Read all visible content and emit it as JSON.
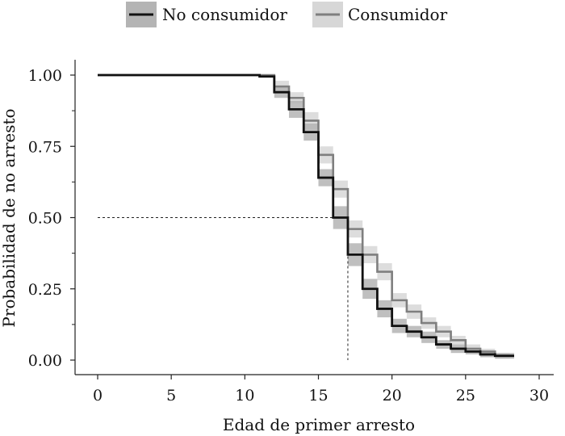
{
  "chart_data": {
    "type": "line",
    "step": true,
    "xlabel": "Edad de primer arresto",
    "ylabel": "Probabilidad de no arresto",
    "xlim": [
      0,
      30
    ],
    "ylim": [
      0,
      1
    ],
    "x_ticks": [
      0,
      5,
      10,
      15,
      20,
      25,
      30
    ],
    "x_tick_labels": [
      "0",
      "5",
      "10",
      "15",
      "20",
      "25",
      "30"
    ],
    "y_ticks": [
      0,
      0.25,
      0.5,
      0.75,
      1
    ],
    "y_tick_labels": [
      "0.00",
      "0.25",
      "0.50",
      "0.75",
      "1.00"
    ],
    "grid": false,
    "legend_position": "top",
    "median_line": {
      "y": 0.5,
      "x": 17
    },
    "series": [
      {
        "name": "Consumidor",
        "color": "#7f7f7f",
        "band_color": "#d7d7d7",
        "points": [
          [
            0,
            1
          ],
          [
            12,
            0.96
          ],
          [
            13,
            0.92
          ],
          [
            14,
            0.84
          ],
          [
            15,
            0.72
          ],
          [
            16,
            0.6
          ],
          [
            17,
            0.46
          ],
          [
            18,
            0.37
          ],
          [
            19,
            0.31
          ],
          [
            20,
            0.21
          ],
          [
            21,
            0.17
          ],
          [
            22,
            0.13
          ],
          [
            23,
            0.1
          ],
          [
            24,
            0.07
          ],
          [
            25,
            0.04
          ],
          [
            26,
            0.03
          ],
          [
            27,
            0.015
          ],
          [
            28,
            0.015
          ]
        ],
        "ci": [
          [
            0,
            0
          ],
          [
            0.02,
            0.02
          ],
          [
            0.02,
            0.02
          ],
          [
            0.03,
            0.03
          ],
          [
            0.03,
            0.03
          ],
          [
            0.03,
            0.03
          ],
          [
            0.03,
            0.03
          ],
          [
            0.03,
            0.03
          ],
          [
            0.03,
            0.03
          ],
          [
            0.025,
            0.025
          ],
          [
            0.025,
            0.025
          ],
          [
            0.02,
            0.02
          ],
          [
            0.02,
            0.02
          ],
          [
            0.015,
            0.015
          ],
          [
            0.015,
            0.015
          ],
          [
            0.01,
            0.01
          ],
          [
            0.01,
            0.01
          ],
          [
            0.01,
            0.01
          ]
        ]
      },
      {
        "name": "No consumidor",
        "color": "#111111",
        "band_color": "#b4b4b4",
        "points": [
          [
            0,
            1
          ],
          [
            11,
            0.995
          ],
          [
            12,
            0.94
          ],
          [
            13,
            0.88
          ],
          [
            14,
            0.8
          ],
          [
            15,
            0.64
          ],
          [
            16,
            0.5
          ],
          [
            17,
            0.37
          ],
          [
            18,
            0.25
          ],
          [
            19,
            0.18
          ],
          [
            20,
            0.12
          ],
          [
            21,
            0.1
          ],
          [
            22,
            0.08
          ],
          [
            23,
            0.055
          ],
          [
            24,
            0.04
          ],
          [
            25,
            0.03
          ],
          [
            26,
            0.02
          ],
          [
            27,
            0.015
          ],
          [
            28.3,
            0.015
          ]
        ],
        "ci": [
          [
            0,
            0
          ],
          [
            0.003,
            0.003
          ],
          [
            0.02,
            0.02
          ],
          [
            0.03,
            0.03
          ],
          [
            0.03,
            0.03
          ],
          [
            0.03,
            0.03
          ],
          [
            0.04,
            0.04
          ],
          [
            0.04,
            0.04
          ],
          [
            0.035,
            0.035
          ],
          [
            0.03,
            0.03
          ],
          [
            0.025,
            0.025
          ],
          [
            0.02,
            0.02
          ],
          [
            0.02,
            0.02
          ],
          [
            0.015,
            0.015
          ],
          [
            0.015,
            0.015
          ],
          [
            0.01,
            0.01
          ],
          [
            0.01,
            0.01
          ],
          [
            0.01,
            0.01
          ],
          [
            0.01,
            0.01
          ]
        ]
      }
    ]
  },
  "legend": {
    "items": [
      {
        "label": "No consumidor",
        "line_color": "#111111",
        "key_color": "#b4b4b4"
      },
      {
        "label": "Consumidor",
        "line_color": "#7f7f7f",
        "key_color": "#d7d7d7"
      }
    ]
  }
}
